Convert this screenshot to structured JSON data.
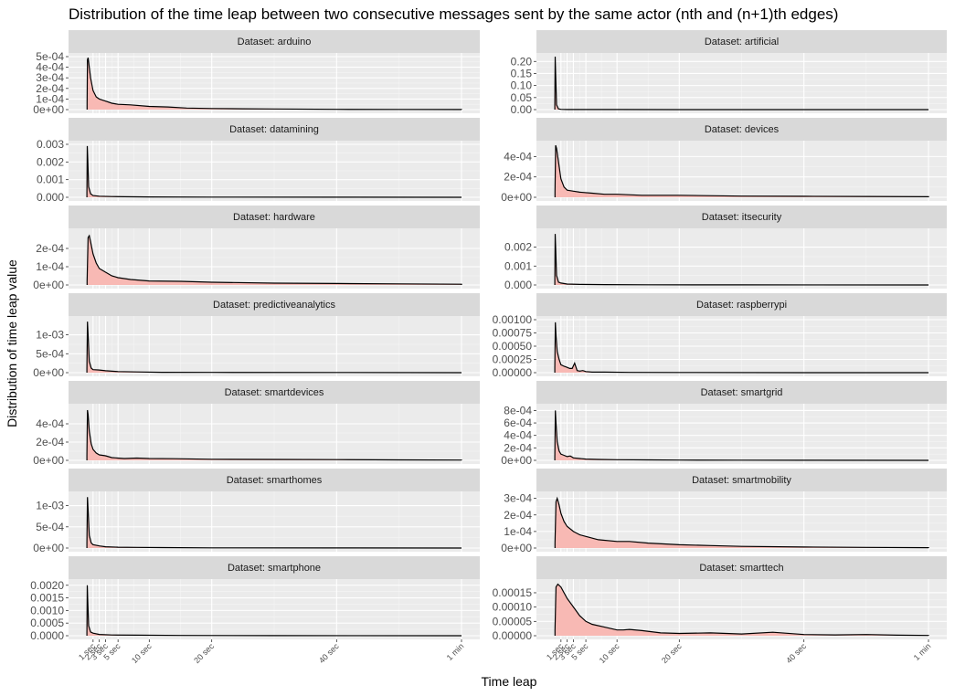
{
  "chart_data": {
    "type": "area",
    "title": "Distribution of the time leap between two consecutive messages sent by the same actor (nth and (n+1)th edges)",
    "xlabel": "Time leap",
    "ylabel": "Distribution of time leap value",
    "x_unit": "seconds",
    "xlim": [
      0,
      60
    ],
    "x_ticks": [
      {
        "value": 1,
        "label": "1 sec"
      },
      {
        "value": 2,
        "label": "2 sec"
      },
      {
        "value": 3,
        "label": "3 sec"
      },
      {
        "value": 5,
        "label": "5 sec"
      },
      {
        "value": 10,
        "label": "10 sec"
      },
      {
        "value": 20,
        "label": "20 sec"
      },
      {
        "value": 40,
        "label": "40 sec"
      },
      {
        "value": 60,
        "label": "1 min"
      }
    ],
    "fill_color": "#f8b9b4",
    "line_color": "#000000",
    "grid": true,
    "panels": [
      {
        "title": "Dataset: arduino",
        "ylim": [
          0,
          0.0005
        ],
        "y_ticks": [
          {
            "value": 0,
            "label": "0e+00"
          },
          {
            "value": 0.0001,
            "label": "1e-04"
          },
          {
            "value": 0.0002,
            "label": "2e-04"
          },
          {
            "value": 0.0003,
            "label": "3e-04"
          },
          {
            "value": 0.0004,
            "label": "4e-04"
          },
          {
            "value": 0.0005,
            "label": "5e-04"
          }
        ],
        "x": [
          0.05,
          0.1,
          0.2,
          0.4,
          0.6,
          1,
          1.5,
          2,
          3,
          4,
          5,
          7,
          10,
          13,
          16,
          20,
          25,
          30,
          40,
          50,
          60
        ],
        "y": [
          5e-05,
          0.00047,
          0.00049,
          0.0004,
          0.0003,
          0.00018,
          0.00012,
          0.0001,
          8e-05,
          6e-05,
          5e-05,
          4.5e-05,
          3e-05,
          2.5e-05,
          1.5e-05,
          1e-05,
          8e-06,
          6e-06,
          3e-06,
          2e-06,
          1e-06
        ]
      },
      {
        "title": "Dataset: artificial",
        "ylim": [
          0,
          0.22
        ],
        "y_ticks": [
          {
            "value": 0,
            "label": "0.00"
          },
          {
            "value": 0.05,
            "label": "0.05"
          },
          {
            "value": 0.1,
            "label": "0.10"
          },
          {
            "value": 0.15,
            "label": "0.15"
          },
          {
            "value": 0.2,
            "label": "0.20"
          }
        ],
        "x": [
          0.02,
          0.08,
          0.15,
          0.3,
          0.6,
          1,
          2,
          5,
          10,
          20,
          40,
          60
        ],
        "y": [
          0.02,
          0.22,
          0.15,
          0.02,
          0.003,
          0.001,
          0.0005,
          0.0003,
          0.0002,
          0.0001,
          5e-05,
          0
        ]
      },
      {
        "title": "Dataset: datamining",
        "ylim": [
          0,
          0.003
        ],
        "y_ticks": [
          {
            "value": 0,
            "label": "0.000"
          },
          {
            "value": 0.001,
            "label": "0.001"
          },
          {
            "value": 0.002,
            "label": "0.002"
          },
          {
            "value": 0.003,
            "label": "0.003"
          }
        ],
        "x": [
          0.02,
          0.08,
          0.15,
          0.3,
          0.6,
          1,
          2,
          4,
          6,
          10,
          20,
          40,
          60
        ],
        "y": [
          0.0002,
          0.0029,
          0.0022,
          0.0006,
          0.0002,
          0.0001,
          6e-05,
          4e-05,
          3e-05,
          2e-05,
          1e-05,
          5e-06,
          0
        ]
      },
      {
        "title": "Dataset: devices",
        "ylim": [
          0,
          0.00052
        ],
        "y_ticks": [
          {
            "value": 0,
            "label": "0e+00"
          },
          {
            "value": 0.0002,
            "label": "2e-04"
          },
          {
            "value": 0.0004,
            "label": "4e-04"
          }
        ],
        "x": [
          0.05,
          0.15,
          0.3,
          0.6,
          1,
          1.5,
          2,
          3,
          4,
          6,
          8,
          10,
          14,
          20,
          30,
          40,
          50,
          60
        ],
        "y": [
          5e-05,
          0.00051,
          0.00048,
          0.00035,
          0.00018,
          0.0001,
          7e-05,
          6e-05,
          5e-05,
          4e-05,
          3e-05,
          3e-05,
          2e-05,
          2e-05,
          1.2e-05,
          1e-05,
          8e-06,
          5e-06
        ]
      },
      {
        "title": "Dataset: hardware",
        "ylim": [
          0,
          0.00029
        ],
        "y_ticks": [
          {
            "value": 0,
            "label": "0e+00"
          },
          {
            "value": 0.0001,
            "label": "1e-04"
          },
          {
            "value": 0.0002,
            "label": "2e-04"
          }
        ],
        "x": [
          0.05,
          0.2,
          0.4,
          0.7,
          1,
          1.5,
          2,
          3,
          4,
          5,
          7,
          10,
          15,
          20,
          30,
          40,
          50,
          60
        ],
        "y": [
          2e-05,
          0.00026,
          0.00027,
          0.00022,
          0.00017,
          0.00012,
          9e-05,
          7e-05,
          5e-05,
          4e-05,
          3e-05,
          2.2e-05,
          2e-05,
          1.5e-05,
          1e-05,
          8e-06,
          6e-06,
          4e-06
        ]
      },
      {
        "title": "Dataset: itsecurity",
        "ylim": [
          0,
          0.0028
        ],
        "y_ticks": [
          {
            "value": 0,
            "label": "0.000"
          },
          {
            "value": 0.001,
            "label": "0.001"
          },
          {
            "value": 0.002,
            "label": "0.002"
          }
        ],
        "x": [
          0.02,
          0.08,
          0.15,
          0.3,
          0.6,
          1,
          2,
          4,
          8,
          15,
          30,
          60
        ],
        "y": [
          0.0002,
          0.0027,
          0.002,
          0.0005,
          0.00015,
          0.0001,
          5e-05,
          3e-05,
          2e-05,
          1e-05,
          5e-06,
          0
        ]
      },
      {
        "title": "Dataset: predictiveanalytics",
        "ylim": [
          0,
          0.0014
        ],
        "y_ticks": [
          {
            "value": 0,
            "label": "0e+00"
          },
          {
            "value": 0.0005,
            "label": "5e-04"
          },
          {
            "value": 0.001,
            "label": "1e-03"
          }
        ],
        "x": [
          0.02,
          0.1,
          0.2,
          0.4,
          0.7,
          1,
          2,
          3,
          5,
          8,
          12,
          20,
          40,
          60
        ],
        "y": [
          0.0001,
          0.00135,
          0.001,
          0.0003,
          0.00012,
          8e-05,
          7e-05,
          5e-05,
          3e-05,
          2e-05,
          1e-05,
          8e-06,
          4e-06,
          0
        ]
      },
      {
        "title": "Dataset: raspberrypi",
        "ylim": [
          0,
          0.001
        ],
        "y_ticks": [
          {
            "value": 0,
            "label": "0.00000"
          },
          {
            "value": 0.00025,
            "label": "0.00025"
          },
          {
            "value": 0.0005,
            "label": "0.00050"
          },
          {
            "value": 0.00075,
            "label": "0.00075"
          },
          {
            "value": 0.001,
            "label": "0.00100"
          }
        ],
        "x": [
          0.02,
          0.1,
          0.2,
          0.4,
          0.7,
          1,
          1.5,
          2,
          2.4,
          2.8,
          3.2,
          3.6,
          4,
          4.5,
          5,
          6,
          8,
          12,
          20,
          40,
          60
        ],
        "y": [
          0.0001,
          0.00095,
          0.0007,
          0.0004,
          0.00025,
          0.00015,
          0.00012,
          0.0001,
          8e-05,
          8e-05,
          0.00018,
          4e-05,
          3e-05,
          4e-05,
          2e-05,
          1e-05,
          1e-05,
          5e-06,
          3e-06,
          0,
          0
        ]
      },
      {
        "title": "Dataset: smartdevices",
        "ylim": [
          0,
          0.00058
        ],
        "y_ticks": [
          {
            "value": 0,
            "label": "0e+00"
          },
          {
            "value": 0.0002,
            "label": "2e-04"
          },
          {
            "value": 0.0004,
            "label": "4e-04"
          }
        ],
        "x": [
          0.02,
          0.1,
          0.2,
          0.4,
          0.7,
          1,
          1.5,
          2,
          3,
          4,
          6,
          8,
          10,
          14,
          20,
          30,
          40,
          50,
          60
        ],
        "y": [
          5e-05,
          0.00055,
          0.0005,
          0.00032,
          0.00018,
          0.00012,
          8e-05,
          6e-05,
          5e-05,
          3e-05,
          2e-05,
          2.5e-05,
          2e-05,
          1.8e-05,
          1.2e-05,
          1e-05,
          8e-06,
          5e-06,
          3e-06
        ]
      },
      {
        "title": "Dataset: smartgrid",
        "ylim": [
          0,
          0.00085
        ],
        "y_ticks": [
          {
            "value": 0,
            "label": "0e+00"
          },
          {
            "value": 0.0002,
            "label": "2e-04"
          },
          {
            "value": 0.0004,
            "label": "4e-04"
          },
          {
            "value": 0.0006,
            "label": "6e-04"
          },
          {
            "value": 0.0008,
            "label": "8e-04"
          }
        ],
        "x": [
          0.02,
          0.1,
          0.2,
          0.4,
          0.7,
          1,
          1.5,
          2,
          2.5,
          3,
          4,
          5,
          7,
          10,
          15,
          20,
          30,
          40,
          60
        ],
        "y": [
          5e-05,
          0.0008,
          0.0006,
          0.0003,
          0.00015,
          0.0001,
          8e-05,
          6e-05,
          7e-05,
          4e-05,
          3e-05,
          2e-05,
          1.5e-05,
          1e-05,
          8e-06,
          5e-06,
          3e-06,
          2e-06,
          0
        ]
      },
      {
        "title": "Dataset: smarthomes",
        "ylim": [
          0,
          0.00125
        ],
        "y_ticks": [
          {
            "value": 0,
            "label": "0e+00"
          },
          {
            "value": 0.0005,
            "label": "5e-04"
          },
          {
            "value": 0.001,
            "label": "1e-03"
          }
        ],
        "x": [
          0.02,
          0.1,
          0.2,
          0.4,
          0.7,
          1,
          2,
          3,
          5,
          8,
          12,
          20,
          40,
          60
        ],
        "y": [
          0.0001,
          0.0012,
          0.0009,
          0.0003,
          0.00012,
          8e-05,
          5e-05,
          3e-05,
          2e-05,
          1.5e-05,
          1e-05,
          5e-06,
          3e-06,
          0
        ]
      },
      {
        "title": "Dataset: smartmobility",
        "ylim": [
          0,
          0.00032
        ],
        "y_ticks": [
          {
            "value": 0,
            "label": "0e+00"
          },
          {
            "value": 0.0001,
            "label": "1e-04"
          },
          {
            "value": 0.0002,
            "label": "2e-04"
          },
          {
            "value": 0.0003,
            "label": "3e-04"
          }
        ],
        "x": [
          0.05,
          0.2,
          0.4,
          0.7,
          1,
          1.5,
          2,
          3,
          4,
          5,
          7,
          10,
          12,
          15,
          20,
          25,
          30,
          40,
          50,
          60
        ],
        "y": [
          3e-05,
          0.00028,
          0.0003,
          0.00026,
          0.00021,
          0.00016,
          0.00013,
          0.0001,
          8e-05,
          7e-05,
          5e-05,
          4e-05,
          4e-05,
          3e-05,
          2e-05,
          1.5e-05,
          1e-05,
          6e-06,
          4e-06,
          2e-06
        ]
      },
      {
        "title": "Dataset: smartphone",
        "ylim": [
          0,
          0.0021
        ],
        "y_ticks": [
          {
            "value": 0,
            "label": "0.0000"
          },
          {
            "value": 0.0005,
            "label": "0.0005"
          },
          {
            "value": 0.001,
            "label": "0.0010"
          },
          {
            "value": 0.0015,
            "label": "0.0015"
          },
          {
            "value": 0.002,
            "label": "0.0020"
          }
        ],
        "x": [
          0.02,
          0.08,
          0.15,
          0.3,
          0.6,
          1,
          2,
          4,
          8,
          15,
          30,
          60
        ],
        "y": [
          0.0001,
          0.002,
          0.0014,
          0.0004,
          0.00015,
          0.0001,
          5e-05,
          3e-05,
          2e-05,
          1e-05,
          5e-06,
          0
        ]
      },
      {
        "title": "Dataset: smarttech",
        "ylim": [
          0,
          0.000185
        ],
        "y_ticks": [
          {
            "value": 0,
            "label": "0.00000"
          },
          {
            "value": 5e-05,
            "label": "0.00005"
          },
          {
            "value": 0.0001,
            "label": "0.00010"
          },
          {
            "value": 0.00015,
            "label": "0.00015"
          }
        ],
        "x": [
          0.05,
          0.2,
          0.5,
          1,
          1.5,
          2,
          3,
          4,
          5,
          6,
          8,
          10,
          11,
          12,
          14,
          17,
          20,
          25,
          30,
          35,
          40,
          45,
          50,
          55,
          60
        ],
        "y": [
          2e-05,
          0.00017,
          0.00018,
          0.00017,
          0.00015,
          0.00013,
          0.0001,
          7e-05,
          5e-05,
          4e-05,
          3e-05,
          2e-05,
          2e-05,
          2.2e-05,
          1.8e-05,
          1e-05,
          8e-06,
          1e-05,
          6e-06,
          1.2e-05,
          4e-06,
          3e-06,
          4e-06,
          2e-06,
          1e-06
        ]
      }
    ]
  }
}
